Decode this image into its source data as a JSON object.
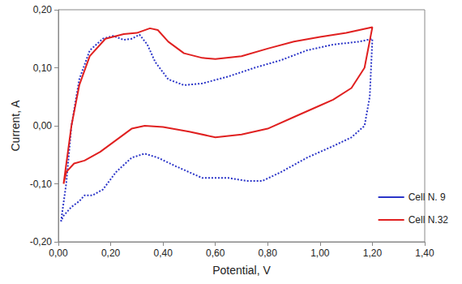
{
  "chart_data": {
    "type": "line",
    "x_label": "Potential, V",
    "y_label": "Current, A",
    "xlim": [
      0,
      1.4
    ],
    "ylim": [
      -0.2,
      0.2
    ],
    "xticks": [
      {
        "value": 0,
        "label": "0,00"
      },
      {
        "value": 0.2,
        "label": "0,20"
      },
      {
        "value": 0.4,
        "label": "0,40"
      },
      {
        "value": 0.6,
        "label": "0,60"
      },
      {
        "value": 0.8,
        "label": "0,80"
      },
      {
        "value": 1.0,
        "label": "1,00"
      },
      {
        "value": 1.2,
        "label": "1,20"
      },
      {
        "value": 1.4,
        "label": "1,40"
      }
    ],
    "yticks": [
      {
        "value": -0.2,
        "label": "-0,20"
      },
      {
        "value": -0.1,
        "label": "-0,10"
      },
      {
        "value": 0,
        "label": "0,00"
      },
      {
        "value": 0.1,
        "label": "0,10"
      },
      {
        "value": 0.2,
        "label": "0,20"
      }
    ],
    "grid": false,
    "legend": "right",
    "series": [
      {
        "name": "Cell N. 9",
        "color": "#2b35c8",
        "line_style": "dotted",
        "x": [
          0.01,
          0.03,
          0.05,
          0.08,
          0.12,
          0.17,
          0.21,
          0.25,
          0.28,
          0.31,
          0.34,
          0.37,
          0.42,
          0.48,
          0.55,
          0.65,
          0.75,
          0.85,
          0.95,
          1.05,
          1.15,
          1.2,
          1.19,
          1.17,
          1.12,
          1.05,
          0.95,
          0.85,
          0.78,
          0.72,
          0.65,
          0.55,
          0.45,
          0.38,
          0.33,
          0.28,
          0.22,
          0.17,
          0.13,
          0.1,
          0.08,
          0.05,
          0.02,
          0.01
        ],
        "values": [
          -0.165,
          -0.1,
          0.0,
          0.08,
          0.13,
          0.15,
          0.155,
          0.148,
          0.15,
          0.157,
          0.14,
          0.11,
          0.08,
          0.07,
          0.073,
          0.085,
          0.1,
          0.113,
          0.13,
          0.14,
          0.145,
          0.15,
          0.05,
          0.0,
          -0.02,
          -0.035,
          -0.055,
          -0.08,
          -0.095,
          -0.095,
          -0.09,
          -0.09,
          -0.07,
          -0.055,
          -0.048,
          -0.055,
          -0.08,
          -0.11,
          -0.12,
          -0.12,
          -0.13,
          -0.14,
          -0.155,
          -0.165
        ]
      },
      {
        "name": "Cell N.32",
        "color": "#e02020",
        "line_style": "solid",
        "x": [
          0.02,
          0.05,
          0.08,
          0.12,
          0.18,
          0.25,
          0.3,
          0.35,
          0.38,
          0.42,
          0.48,
          0.55,
          0.6,
          0.7,
          0.8,
          0.9,
          1.0,
          1.1,
          1.2,
          1.17,
          1.12,
          1.05,
          1.0,
          0.9,
          0.8,
          0.7,
          0.6,
          0.5,
          0.4,
          0.33,
          0.28,
          0.22,
          0.16,
          0.1,
          0.06,
          0.03,
          0.02
        ],
        "values": [
          -0.1,
          0.0,
          0.07,
          0.12,
          0.15,
          0.158,
          0.16,
          0.168,
          0.165,
          0.145,
          0.125,
          0.117,
          0.115,
          0.12,
          0.133,
          0.145,
          0.153,
          0.16,
          0.17,
          0.1,
          0.065,
          0.045,
          0.035,
          0.015,
          -0.005,
          -0.015,
          -0.02,
          -0.01,
          -0.002,
          0.0,
          -0.005,
          -0.025,
          -0.045,
          -0.06,
          -0.065,
          -0.08,
          -0.1
        ]
      }
    ]
  }
}
